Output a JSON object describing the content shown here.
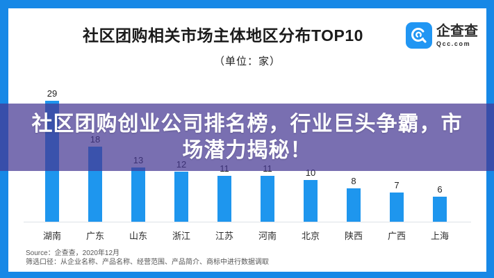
{
  "header": {
    "title": "社区团购相关市场主体地区分布TOP10",
    "unit_label": "（单位：家）"
  },
  "logo": {
    "brand": "企查查",
    "domain": "Qcc.com",
    "icon": "qcc-swirl-icon",
    "icon_color": "#2196F3"
  },
  "banner": {
    "line1": "社区团购创业公司排名榜，行业巨头争霸，市",
    "line2": "场潜力揭秘！",
    "full_text": "社区团购创业公司排名榜，行业巨头争霸，市场潜力揭秘！",
    "overlay_color": "rgba(69,55,147,0.72)"
  },
  "chart_data": {
    "type": "bar",
    "title": "社区团购相关市场主体地区分布TOP10",
    "unit": "家",
    "categories": [
      "湖南",
      "广东",
      "山东",
      "浙江",
      "江苏",
      "河南",
      "北京",
      "陕西",
      "广西",
      "上海"
    ],
    "values": [
      29,
      18,
      13,
      12,
      11,
      11,
      10,
      8,
      7,
      6
    ],
    "ylim": [
      0,
      29
    ],
    "grid": false,
    "value_labels": true,
    "legend": "none",
    "bar_color": "#1E96EE"
  },
  "footer": {
    "source_line": "Source：企查查，2020年12月",
    "filter_line": "筛选口径：从企业名称、产品名称、经营范围、产品简介、商标中进行数据调取"
  },
  "colors": {
    "frame": "#1788E6",
    "card": "#FFFFFF",
    "bar": "#1E96EE",
    "axis": "#DDE1E7",
    "text_dark": "#222222"
  }
}
